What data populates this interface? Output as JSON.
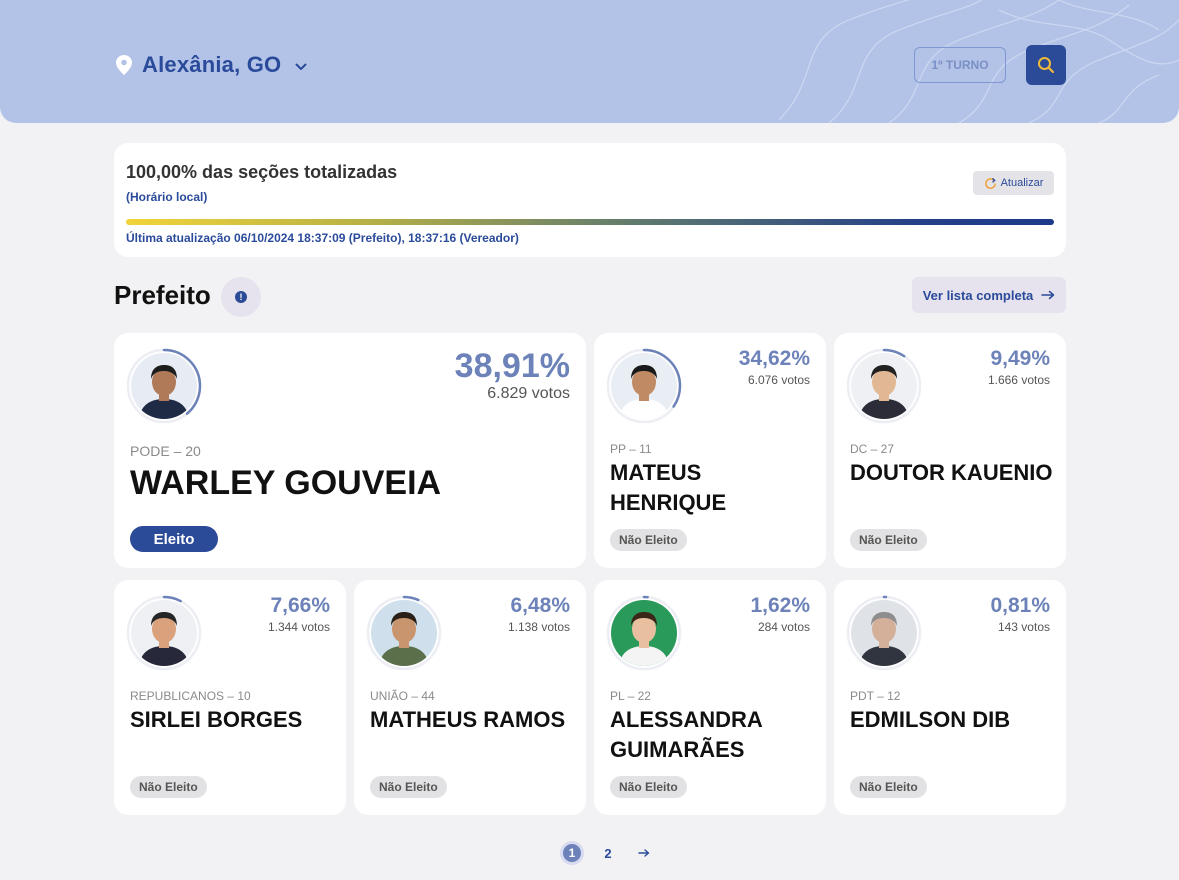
{
  "header": {
    "city": "Alexânia, GO",
    "turno_label": "1º TURNO"
  },
  "status": {
    "title": "100,00% das seções totalizadas",
    "subtitle": "(Horário local)",
    "refresh_label": "Atualizar",
    "progress": 1.0,
    "last_update": "Última atualização 06/10/2024 18:37:09 (Prefeito), 18:37:16 (Vereador)"
  },
  "section": {
    "title": "Prefeito",
    "full_list_label": "Ver lista completa"
  },
  "colors": {
    "accent": "#2b4a97",
    "percent": "#6c82b8",
    "header_bg": "#b3c3e8"
  },
  "candidates": [
    {
      "name": "WARLEY GOUVEIA",
      "party": "PODE – 20",
      "percent": "38,91%",
      "votes": "6.829 votos",
      "share": 0.3891,
      "status": "Eleito"
    },
    {
      "name": "MATEUS HENRIQUE",
      "party": "PP – 11",
      "percent": "34,62%",
      "votes": "6.076 votos",
      "share": 0.3462,
      "status": "Não Eleito"
    },
    {
      "name": "DOUTOR KAUENIO",
      "party": "DC – 27",
      "percent": "9,49%",
      "votes": "1.666 votos",
      "share": 0.0949,
      "status": "Não Eleito"
    },
    {
      "name": "SIRLEI BORGES",
      "party": "REPUBLICANOS – 10",
      "percent": "7,66%",
      "votes": "1.344 votos",
      "share": 0.0766,
      "status": "Não Eleito"
    },
    {
      "name": "MATHEUS RAMOS",
      "party": "UNIÃO – 44",
      "percent": "6,48%",
      "votes": "1.138 votos",
      "share": 0.0648,
      "status": "Não Eleito"
    },
    {
      "name": "ALESSANDRA GUIMARÃES",
      "party": "PL – 22",
      "percent": "1,62%",
      "votes": "284 votos",
      "share": 0.0162,
      "status": "Não Eleito"
    },
    {
      "name": "EDMILSON DIB",
      "party": "PDT – 12",
      "percent": "0,81%",
      "votes": "143 votos",
      "share": 0.0081,
      "status": "Não Eleito"
    }
  ],
  "pagination": {
    "pages": [
      "1",
      "2"
    ],
    "current": "1",
    "next_icon": "arrow-right-icon"
  },
  "icons": {
    "location": "map-pin-icon",
    "dropdown": "chevron-down-icon",
    "search": "search-icon",
    "refresh": "refresh-icon",
    "info": "info-icon",
    "arrow": "arrow-right-icon"
  }
}
